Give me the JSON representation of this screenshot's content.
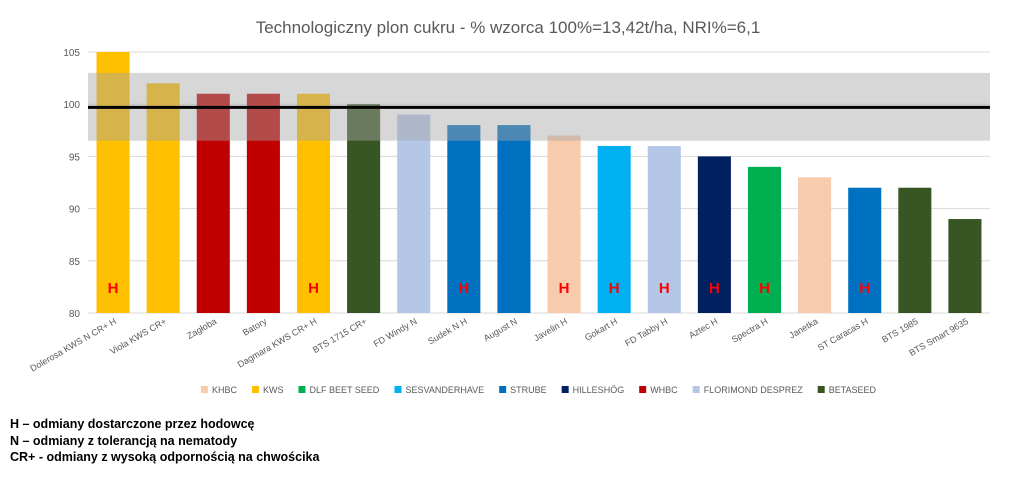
{
  "chart_data": {
    "type": "bar",
    "title": "Technologiczny plon cukru - % wzorca 100%=13,42t/ha, NRI%=6,1",
    "xlabel": "",
    "ylabel": "",
    "ylim": [
      80,
      105
    ],
    "yticks": [
      "80",
      "85",
      "90",
      "95",
      "100",
      "105"
    ],
    "grid": true,
    "legend_position": "bottom",
    "categories": [
      "Dolerosa KWS N CR+ H",
      "Viola KWS CR+",
      "Zagłoba",
      "Batory",
      "Dagmara KWS CR+ H",
      "BTS 1715 CR+",
      "FD Windy N",
      "Sudek N H",
      "August N",
      "Javelin H",
      "Gokart  H",
      "FD Tabby  H",
      "Aztec  H",
      "Spectra  H",
      "Janetka",
      "ST Caracas  H",
      "BTS 1985",
      "BTS Smart 9635"
    ],
    "values": [
      105,
      102,
      101,
      101,
      101,
      100,
      99,
      98,
      98,
      97,
      96,
      96,
      95,
      94,
      93,
      92,
      92,
      89
    ],
    "breeders": [
      "KWS",
      "KWS",
      "WHBC",
      "WHBC",
      "KWS",
      "BETASEED",
      "FLORIMOND DESPREZ",
      "STRUBE",
      "STRUBE",
      "KHBC",
      "SESVANDERHAVE",
      "FLORIMOND DESPREZ",
      "HILLESHÖG",
      "DLF BEET SEED",
      "KHBC",
      "STRUBE",
      "BETASEED",
      "BETASEED"
    ],
    "bar_markers": [
      "H",
      "",
      "",
      "",
      "H",
      "",
      "",
      "H",
      "",
      "H",
      "H",
      "H",
      "H",
      "H",
      "",
      "H",
      "",
      ""
    ],
    "reference_line": 99.7,
    "band": [
      96.5,
      103
    ],
    "legend": [
      {
        "name": "KHBC",
        "color": "#f8cbad"
      },
      {
        "name": "KWS",
        "color": "#ffc000"
      },
      {
        "name": "DLF BEET SEED",
        "color": "#00b050"
      },
      {
        "name": "SESVANDERHAVE",
        "color": "#00b0f0"
      },
      {
        "name": "STRUBE",
        "color": "#0070c0"
      },
      {
        "name": "HILLESHÖG",
        "color": "#002060"
      },
      {
        "name": "WHBC",
        "color": "#c00000"
      },
      {
        "name": "FLORIMOND DESPREZ",
        "color": "#b4c7e7"
      },
      {
        "name": "BETASEED",
        "color": "#375623"
      }
    ],
    "band_color": "#a6a6a6",
    "marker_color": "#ff0000"
  },
  "notes": [
    "H – odmiany dostarczone przez hodowcę",
    "N – odmiany z tolerancją na nematody",
    "CR+ - odmiany z wysoką odpornością na chwościka"
  ]
}
